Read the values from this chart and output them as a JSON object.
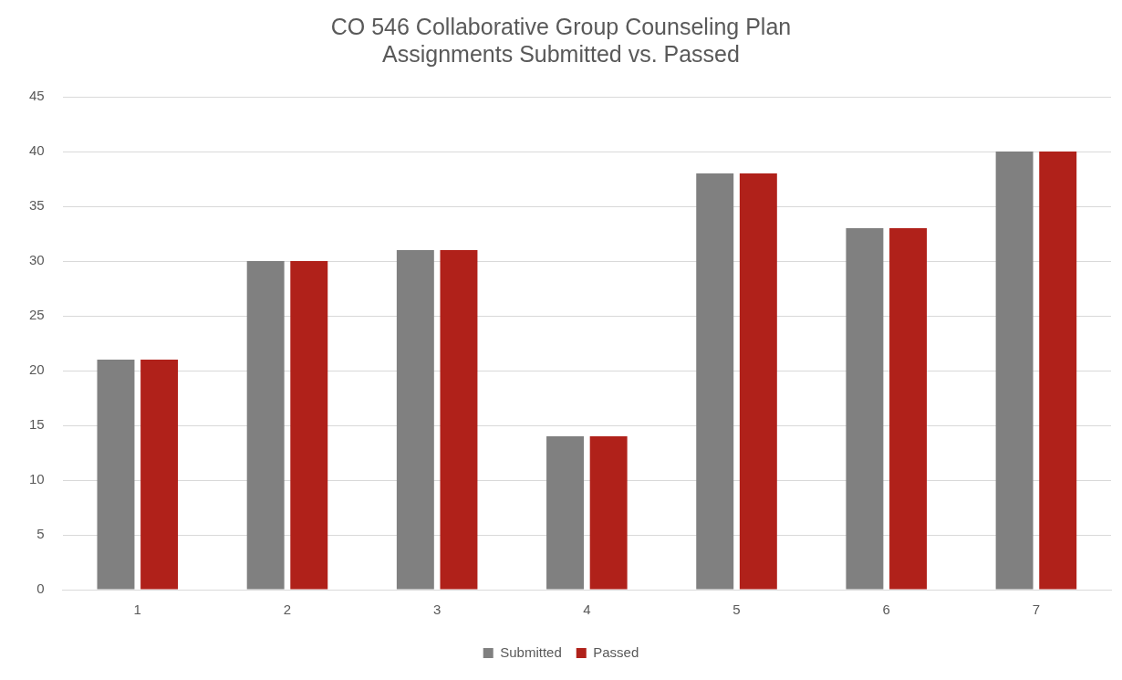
{
  "chart_data": {
    "type": "bar",
    "title": "CO 546 Collaborative Group Counseling Plan",
    "subtitle": "Assignments Submitted vs. Passed",
    "categories": [
      "1",
      "2",
      "3",
      "4",
      "5",
      "6",
      "7"
    ],
    "series": [
      {
        "name": "Submitted",
        "color": "#808080",
        "values": [
          21,
          30,
          31,
          14,
          38,
          33,
          40
        ]
      },
      {
        "name": "Passed",
        "color": "#b0211a",
        "values": [
          21,
          30,
          31,
          14,
          38,
          33,
          40
        ]
      }
    ],
    "ylim": [
      0,
      45
    ],
    "yticks": [
      0,
      5,
      10,
      15,
      20,
      25,
      30,
      35,
      40,
      45
    ],
    "grid": "y",
    "legend": "bottom"
  }
}
